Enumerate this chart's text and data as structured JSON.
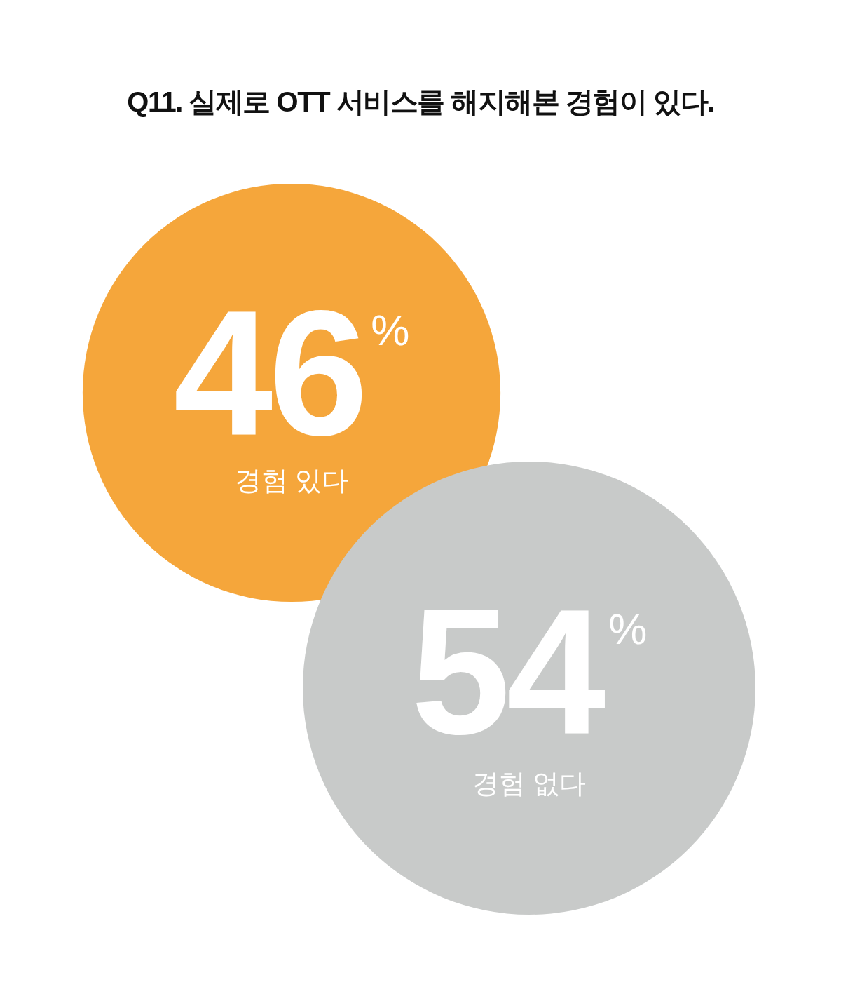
{
  "chart_data": {
    "type": "other",
    "title": "Q11. 실제로 OTT 서비스를 해지해본 경험이 있다.",
    "categories": [
      "경험 있다",
      "경험 없다"
    ],
    "values": [
      46,
      54
    ],
    "colors": [
      "#f5a63b",
      "#c8cac9"
    ],
    "value_labels": [
      "46$^{%}$",
      "54$^{%}$"
    ]
  }
}
